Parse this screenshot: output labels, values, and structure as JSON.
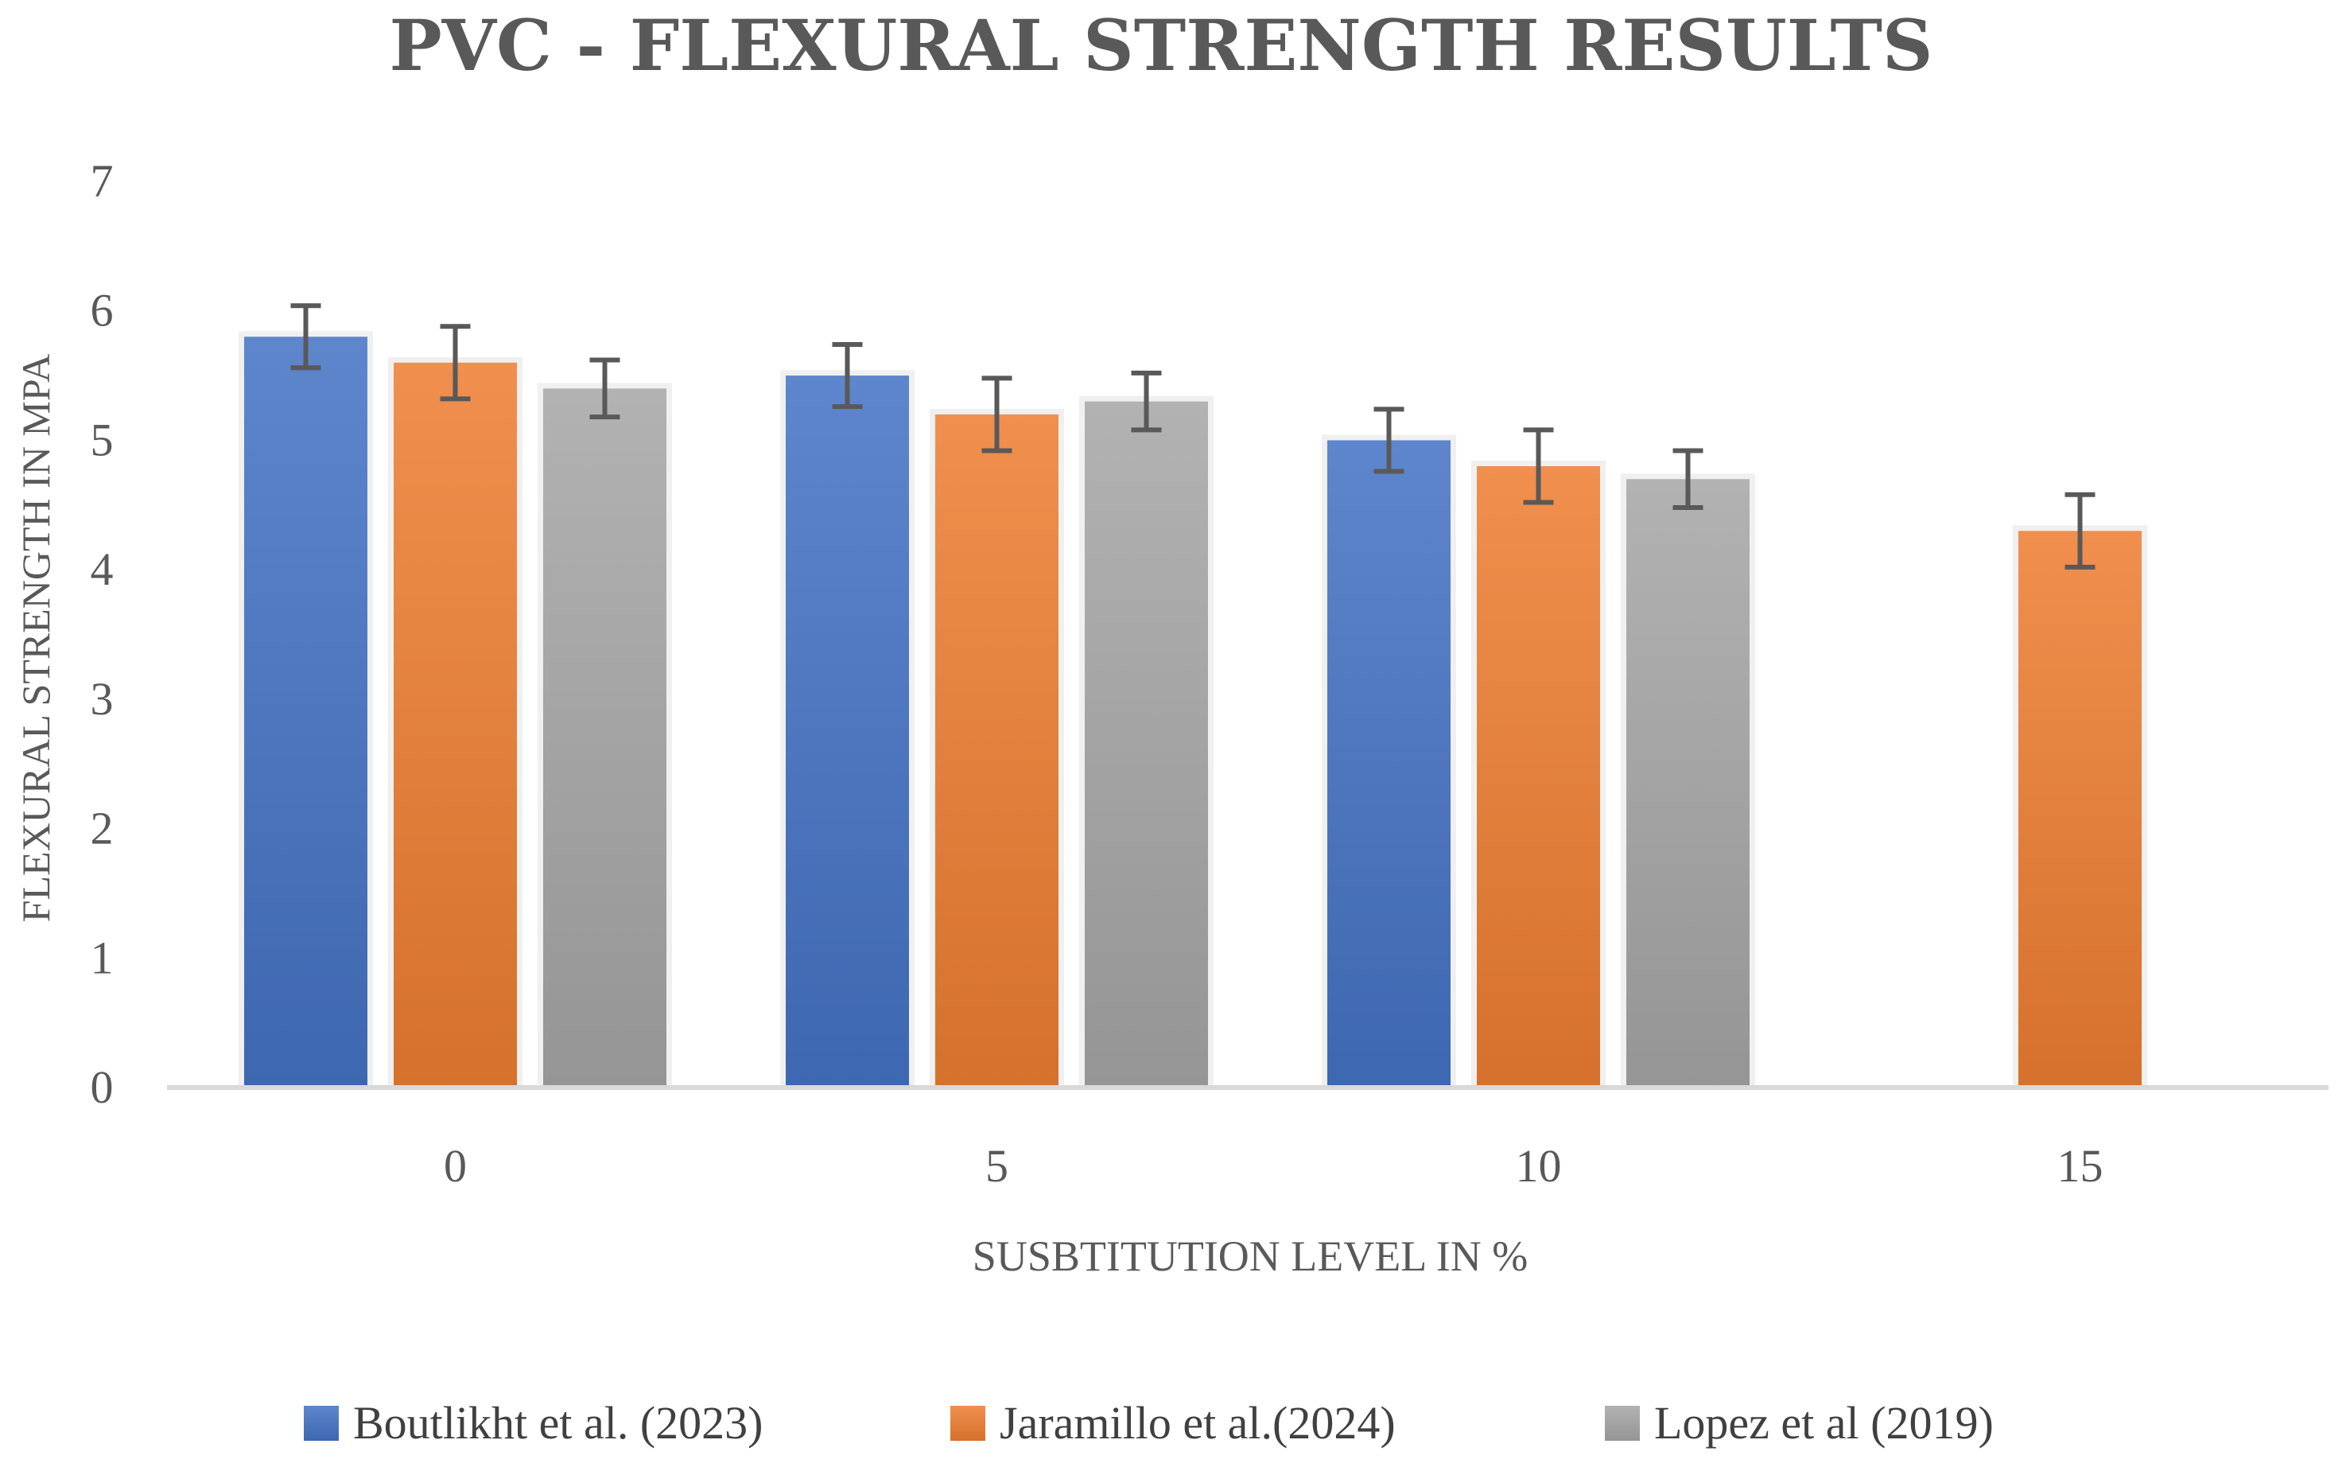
{
  "chart_data": {
    "type": "bar",
    "title": "PVC - FLEXURAL STRENGTH RESULTS",
    "xlabel": "SUSBTITUTION LEVEL IN %",
    "ylabel": "FLEXURAL STRENGTH IN MPA",
    "categories": [
      "0",
      "5",
      "10",
      "15"
    ],
    "ylim": [
      0,
      7
    ],
    "yticks": [
      "0",
      "1",
      "2",
      "3",
      "4",
      "5",
      "6",
      "7"
    ],
    "grid": false,
    "legend_position": "bottom",
    "series": [
      {
        "name": "Boutlikht et al. (2023)",
        "color": "#4472C4",
        "values": [
          5.8,
          5.5,
          5.0,
          null
        ],
        "errors": [
          0.24,
          0.24,
          0.24,
          null
        ]
      },
      {
        "name": "Jaramillo et al.(2024)",
        "color": "#ED7D31",
        "values": [
          5.6,
          5.2,
          4.8,
          4.3
        ],
        "errors": [
          0.28,
          0.28,
          0.28,
          0.28
        ]
      },
      {
        "name": "Lopez et al (2019)",
        "color": "#A5A5A5",
        "values": [
          5.4,
          5.3,
          4.7,
          null
        ],
        "errors": [
          0.22,
          0.22,
          0.22,
          null
        ]
      }
    ]
  }
}
